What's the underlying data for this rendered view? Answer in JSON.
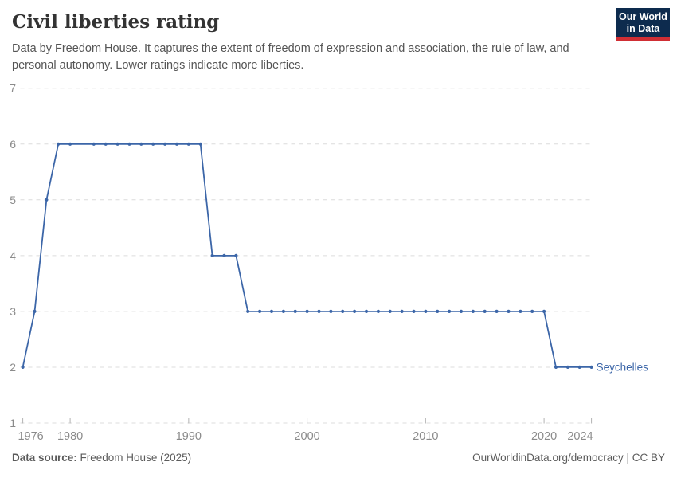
{
  "header": {
    "title": "Civil liberties rating",
    "subtitle": "Data by Freedom House. It captures the extent of freedom of expression and association, the rule of law, and personal autonomy. Lower ratings indicate more liberties.",
    "logo": {
      "line1": "Our World",
      "line2": "in Data",
      "bg_color": "#0d2b4e",
      "accent_color": "#d02e34"
    }
  },
  "chart_data": {
    "type": "line",
    "title": "Civil liberties rating",
    "xlabel": "",
    "ylabel": "",
    "xlim": [
      1976,
      2024
    ],
    "ylim": [
      1,
      7
    ],
    "x_ticks": [
      1976,
      1980,
      1990,
      2000,
      2010,
      2020,
      2024
    ],
    "y_ticks": [
      1,
      2,
      3,
      4,
      5,
      6,
      7
    ],
    "grid": "horizontal-dashed",
    "legend_position": "end-of-line-label",
    "series": [
      {
        "name": "Seychelles",
        "color": "#3c66a8",
        "points": [
          [
            1976,
            2
          ],
          [
            1977,
            3
          ],
          [
            1978,
            5
          ],
          [
            1979,
            6
          ],
          [
            1980,
            6
          ],
          [
            1982,
            6
          ],
          [
            1983,
            6
          ],
          [
            1984,
            6
          ],
          [
            1985,
            6
          ],
          [
            1986,
            6
          ],
          [
            1987,
            6
          ],
          [
            1988,
            6
          ],
          [
            1989,
            6
          ],
          [
            1990,
            6
          ],
          [
            1991,
            6
          ],
          [
            1992,
            4
          ],
          [
            1993,
            4
          ],
          [
            1994,
            4
          ],
          [
            1995,
            3
          ],
          [
            1996,
            3
          ],
          [
            1997,
            3
          ],
          [
            1998,
            3
          ],
          [
            1999,
            3
          ],
          [
            2000,
            3
          ],
          [
            2001,
            3
          ],
          [
            2002,
            3
          ],
          [
            2003,
            3
          ],
          [
            2004,
            3
          ],
          [
            2005,
            3
          ],
          [
            2006,
            3
          ],
          [
            2007,
            3
          ],
          [
            2008,
            3
          ],
          [
            2009,
            3
          ],
          [
            2010,
            3
          ],
          [
            2011,
            3
          ],
          [
            2012,
            3
          ],
          [
            2013,
            3
          ],
          [
            2014,
            3
          ],
          [
            2015,
            3
          ],
          [
            2016,
            3
          ],
          [
            2017,
            3
          ],
          [
            2018,
            3
          ],
          [
            2019,
            3
          ],
          [
            2020,
            3
          ],
          [
            2021,
            2
          ],
          [
            2022,
            2
          ],
          [
            2023,
            2
          ],
          [
            2024,
            2
          ]
        ]
      }
    ],
    "colors": {
      "grid": "#dcdcdc",
      "axis_text": "#8b8b8b",
      "tick_mark": "#b3b3b3"
    }
  },
  "footer": {
    "source_label": "Data source:",
    "source_value": " Freedom House (2025)",
    "credit": "OurWorldinData.org/democracy | CC BY"
  }
}
